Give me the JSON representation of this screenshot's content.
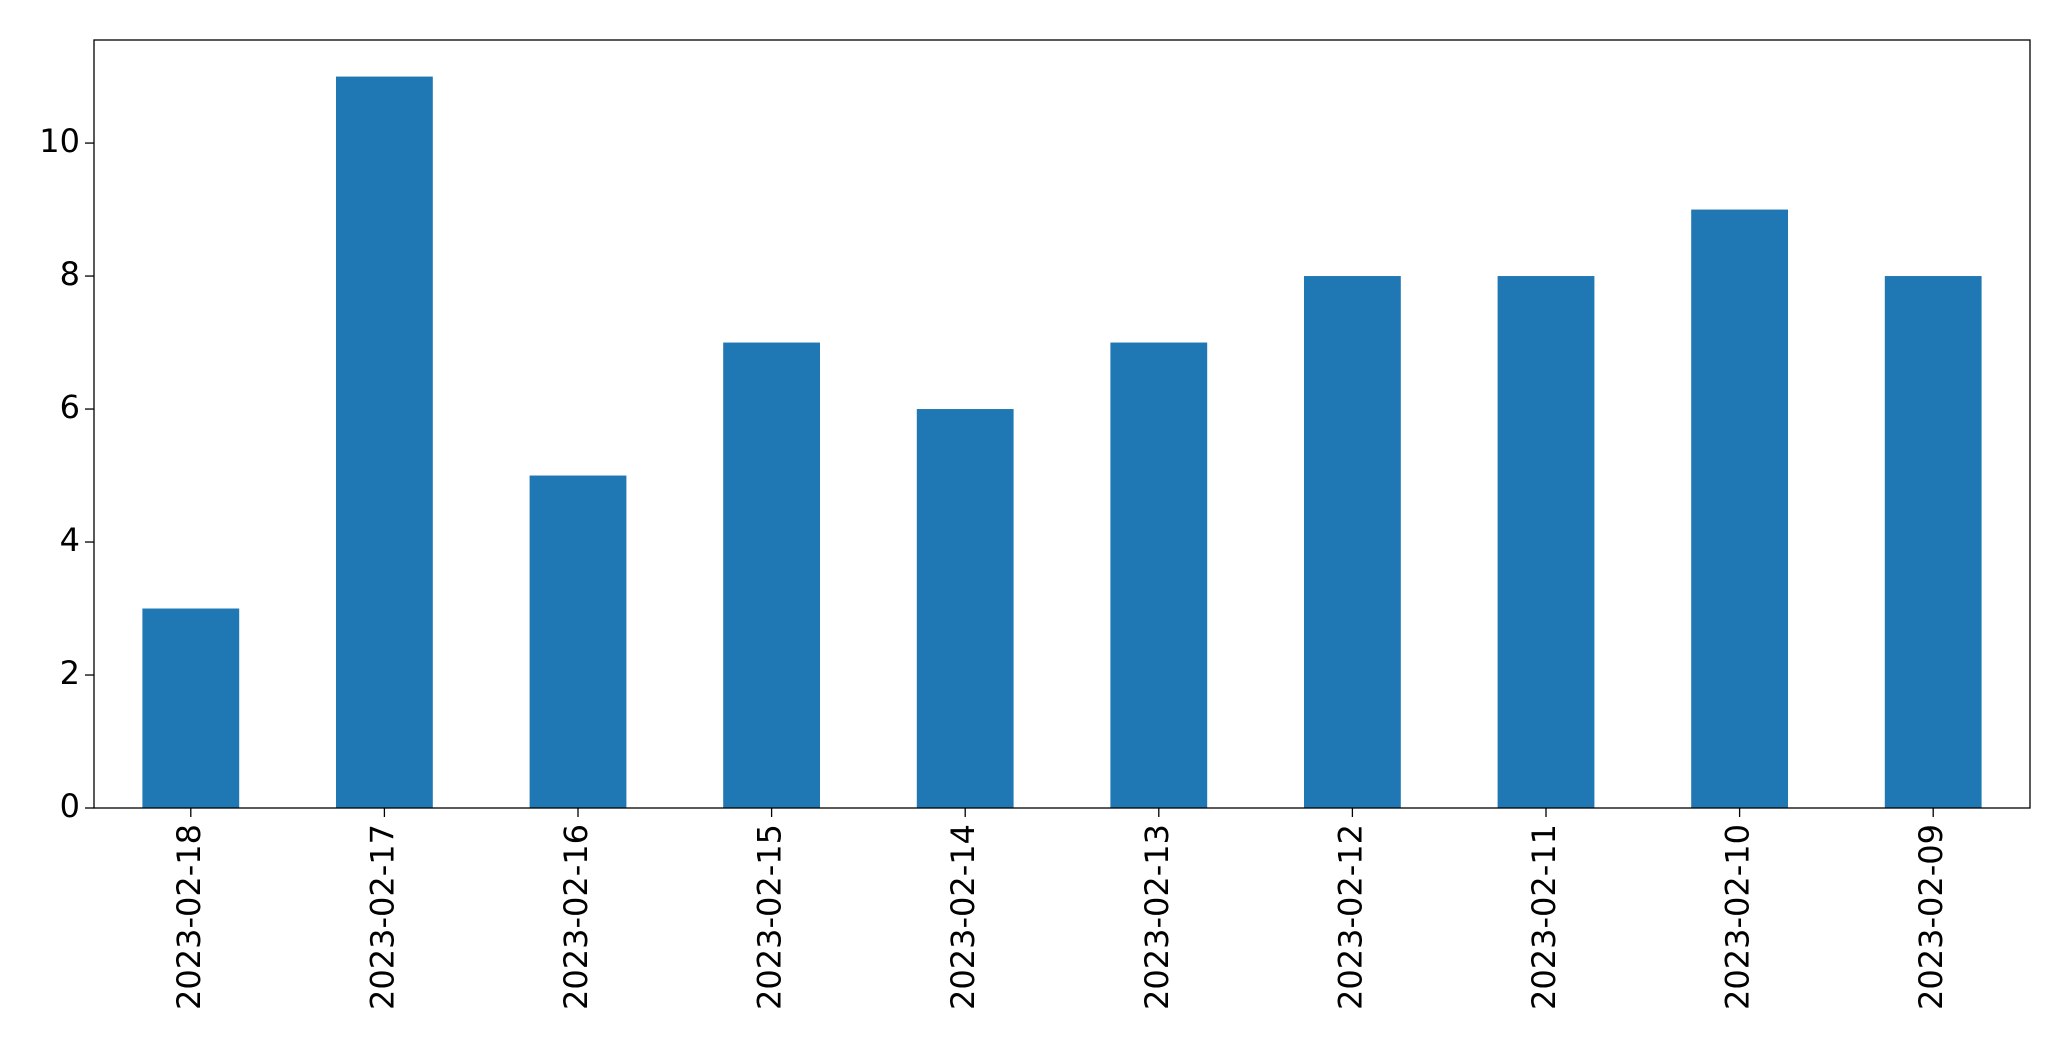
{
  "chart_data": {
    "type": "bar",
    "categories": [
      "2023-02-18",
      "2023-02-17",
      "2023-02-16",
      "2023-02-15",
      "2023-02-14",
      "2023-02-13",
      "2023-02-12",
      "2023-02-11",
      "2023-02-10",
      "2023-02-09"
    ],
    "values": [
      3,
      11,
      5,
      7,
      6,
      7,
      8,
      8,
      9,
      8
    ],
    "color": "#1f77b4",
    "ylim": [
      0,
      11.55
    ],
    "yticks": [
      0,
      2,
      4,
      6,
      8,
      10
    ],
    "grid": false
  }
}
